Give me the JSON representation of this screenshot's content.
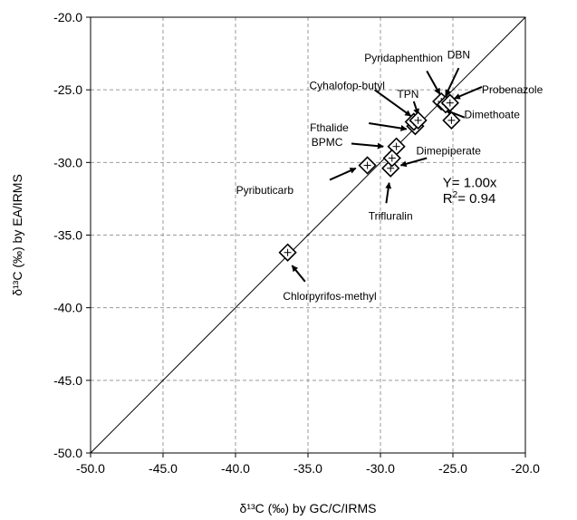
{
  "chart_data": {
    "type": "scatter",
    "xlabel": "δ¹³C (‰) by GC/C/IRMS",
    "ylabel": "δ¹³C (‰) by EA/IRMS",
    "xlim": [
      -50,
      -20
    ],
    "ylim": [
      -50,
      -20
    ],
    "x_ticks": [
      "-50.0",
      "-45.0",
      "-40.0",
      "-35.0",
      "-30.0",
      "-25.0",
      "-20.0"
    ],
    "y_ticks": [
      "-20.0",
      "-25.0",
      "-30.0",
      "-35.0",
      "-40.0",
      "-45.0",
      "-50.0"
    ],
    "grid": true,
    "grid_style": "dashed",
    "reference_line": {
      "from": [
        -50,
        -50
      ],
      "to": [
        -20,
        -20
      ]
    },
    "marker": "diamond-with-error-cross",
    "points": [
      {
        "label": "Chlorpyrifos-methyl",
        "x": -36.4,
        "y": -36.2
      },
      {
        "label": "Pyributicarb",
        "x": -30.9,
        "y": -30.2
      },
      {
        "label": "Trifluralin",
        "x": -29.3,
        "y": -30.4
      },
      {
        "label": "BPMC",
        "x": -28.9,
        "y": -28.9
      },
      {
        "label": "Dimepiperate",
        "x": -29.2,
        "y": -29.7
      },
      {
        "label": "Fthalide",
        "x": -27.6,
        "y": -27.5
      },
      {
        "label": "Cyhalofop-butyl",
        "x": -27.7,
        "y": -27.2
      },
      {
        "label": "TPN",
        "x": -27.4,
        "y": -27.1
      },
      {
        "label": "Pyridaphenthion",
        "x": -25.8,
        "y": -25.8
      },
      {
        "label": "DBN",
        "x": -25.5,
        "y": -26.0
      },
      {
        "label": "Probenazole",
        "x": -25.2,
        "y": -25.9
      },
      {
        "label": "Dimethoate",
        "x": -25.1,
        "y": -27.1
      }
    ],
    "annotations": [
      {
        "text": "Chlorpyrifos-methyl",
        "tx": -33.5,
        "ty": -39.2,
        "anchor": "middle",
        "ax0": -35.2,
        "ay0": -38.2,
        "ax1": -36.1,
        "ay1": -37.1
      },
      {
        "text": "Pyributicarb",
        "tx": -36.0,
        "ty": -31.9,
        "anchor": "end",
        "ax0": -33.5,
        "ay0": -31.2,
        "ax1": -31.7,
        "ay1": -30.4
      },
      {
        "text": "Trifluralin",
        "tx": -29.3,
        "ty": -33.7,
        "anchor": "middle",
        "ax0": -29.6,
        "ay0": -32.8,
        "ax1": -29.4,
        "ay1": -31.4
      },
      {
        "text": "BPMC",
        "tx": -32.6,
        "ty": -28.6,
        "anchor": "end",
        "ax0": -32.0,
        "ay0": -28.7,
        "ax1": -29.8,
        "ay1": -28.9
      },
      {
        "text": "Dimepiperate",
        "tx": -25.3,
        "ty": -29.2,
        "anchor": "middle",
        "ax0": -26.8,
        "ay0": -29.7,
        "ax1": -28.6,
        "ay1": -30.2
      },
      {
        "text": "Fthalide",
        "tx": -32.2,
        "ty": -27.6,
        "anchor": "end",
        "ax0": -30.8,
        "ay0": -27.3,
        "ax1": -28.2,
        "ay1": -27.7
      },
      {
        "text": "Cyhalofop-butyl",
        "tx": -32.3,
        "ty": -24.7,
        "anchor": "middle",
        "ax0": -30.4,
        "ay0": -25.0,
        "ax1": -27.9,
        "ay1": -26.8
      },
      {
        "text": "TPN",
        "tx": -28.1,
        "ty": -25.3,
        "anchor": "middle",
        "ax0": -27.7,
        "ay0": -25.8,
        "ax1": -27.4,
        "ay1": -26.7
      },
      {
        "text": "Pyridaphenthion",
        "tx": -28.4,
        "ty": -22.8,
        "anchor": "middle",
        "ax0": -26.8,
        "ay0": -23.7,
        "ax1": -25.9,
        "ay1": -25.3
      },
      {
        "text": "DBN",
        "tx": -24.6,
        "ty": -22.6,
        "anchor": "middle",
        "ax0": -24.6,
        "ay0": -23.5,
        "ax1": -25.5,
        "ay1": -25.4
      },
      {
        "text": "Probenazole",
        "tx": -20.9,
        "ty": -25.0,
        "anchor": "middle",
        "ax0": -23.0,
        "ay0": -24.8,
        "ax1": -24.9,
        "ay1": -25.6
      },
      {
        "text": "Dimethoate",
        "tx": -22.3,
        "ty": -26.7,
        "anchor": "middle",
        "ax0": -24.2,
        "ay0": -26.9,
        "ax1": -25.5,
        "ay1": -26.4
      }
    ],
    "stats": {
      "equation": "Y= 1.00x",
      "r2_prefix": "R",
      "r2_sup": "2",
      "r2_value": "= 0.94"
    }
  }
}
